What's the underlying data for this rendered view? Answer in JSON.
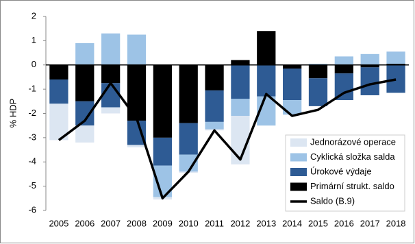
{
  "chart_data": {
    "type": "stacked-bar-line",
    "y_label": "% HDP",
    "categories": [
      "2005",
      "2006",
      "2007",
      "2008",
      "2009",
      "2010",
      "2011",
      "2012",
      "2013",
      "2014",
      "2015",
      "2016",
      "2017",
      "2018"
    ],
    "series": [
      {
        "name": "Jednorázové operace",
        "type": "bar",
        "color": "#dce6f2",
        "values": [
          -1.5,
          -0.7,
          -0.25,
          -0.1,
          -0.1,
          -0.05,
          -0.05,
          -2.0,
          0,
          0,
          0,
          0,
          0,
          0
        ]
      },
      {
        "name": "Cyklická složka salda",
        "type": "bar",
        "color": "#9dc3e6",
        "values": [
          0,
          0.9,
          1.3,
          1.25,
          -1.3,
          -0.7,
          -0.3,
          -0.7,
          -1.2,
          -0.6,
          0.05,
          0.35,
          0.45,
          0.5
        ]
      },
      {
        "name": "Úrokové výdaje",
        "type": "bar",
        "color": "#2e5b94",
        "values": [
          -1.0,
          -1.0,
          -1.0,
          -1.0,
          -1.15,
          -1.3,
          -1.3,
          -1.4,
          -1.3,
          -1.3,
          -1.15,
          -1.1,
          -1.15,
          -1.15
        ]
      },
      {
        "name": "Primární strukt. saldo",
        "type": "bar",
        "color": "#000000",
        "values": [
          -0.6,
          -1.5,
          -0.75,
          -2.3,
          -3.0,
          -2.4,
          -1.05,
          0.2,
          1.4,
          -0.15,
          -0.55,
          -0.35,
          -0.1,
          0.05
        ]
      },
      {
        "name": "Saldo (B.9)",
        "type": "line",
        "color": "#000000",
        "values": [
          -3.1,
          -2.3,
          -0.75,
          -2.2,
          -5.5,
          -4.4,
          -2.7,
          -3.9,
          -1.2,
          -2.1,
          -1.85,
          -1.15,
          -0.8,
          -0.6
        ]
      }
    ],
    "ylim": [
      -6,
      2
    ],
    "yticks": [
      -6,
      -5,
      -4,
      -3,
      -2,
      -1,
      0,
      1,
      2
    ],
    "grid": false,
    "legend": "lower-right"
  }
}
